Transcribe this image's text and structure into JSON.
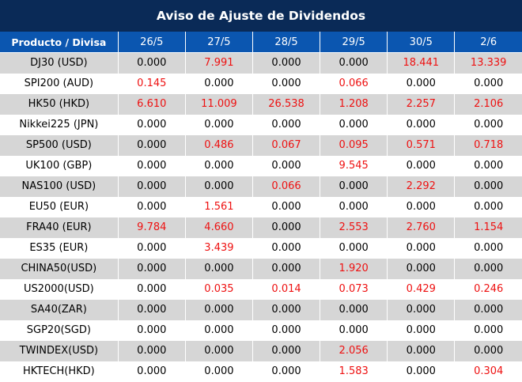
{
  "title": "Aviso de Ajuste de Dividendos",
  "header": {
    "product": "Producto / Divisa",
    "dates": [
      "26/5",
      "27/5",
      "28/5",
      "29/5",
      "30/5",
      "2/6"
    ]
  },
  "rows": [
    {
      "product": "DJ30 (USD)",
      "values": [
        "0.000",
        "7.991",
        "0.000",
        "0.000",
        "18.441",
        "13.339"
      ]
    },
    {
      "product": "SPI200 (AUD)",
      "values": [
        "0.145",
        "0.000",
        "0.000",
        "0.066",
        "0.000",
        "0.000"
      ]
    },
    {
      "product": "HK50 (HKD)",
      "values": [
        "6.610",
        "11.009",
        "26.538",
        "1.208",
        "2.257",
        "2.106"
      ]
    },
    {
      "product": "Nikkei225 (JPN)",
      "values": [
        "0.000",
        "0.000",
        "0.000",
        "0.000",
        "0.000",
        "0.000"
      ]
    },
    {
      "product": "SP500 (USD)",
      "values": [
        "0.000",
        "0.486",
        "0.067",
        "0.095",
        "0.571",
        "0.718"
      ]
    },
    {
      "product": "UK100 (GBP)",
      "values": [
        "0.000",
        "0.000",
        "0.000",
        "9.545",
        "0.000",
        "0.000"
      ]
    },
    {
      "product": "NAS100 (USD)",
      "values": [
        "0.000",
        "0.000",
        "0.066",
        "0.000",
        "2.292",
        "0.000"
      ]
    },
    {
      "product": "EU50 (EUR)",
      "values": [
        "0.000",
        "1.561",
        "0.000",
        "0.000",
        "0.000",
        "0.000"
      ]
    },
    {
      "product": "FRA40 (EUR)",
      "values": [
        "9.784",
        "4.660",
        "0.000",
        "2.553",
        "2.760",
        "1.154"
      ]
    },
    {
      "product": "ES35 (EUR)",
      "values": [
        "0.000",
        "3.439",
        "0.000",
        "0.000",
        "0.000",
        "0.000"
      ]
    },
    {
      "product": "CHINA50(USD)",
      "values": [
        "0.000",
        "0.000",
        "0.000",
        "1.920",
        "0.000",
        "0.000"
      ]
    },
    {
      "product": "US2000(USD)",
      "values": [
        "0.000",
        "0.035",
        "0.014",
        "0.073",
        "0.429",
        "0.246"
      ]
    },
    {
      "product": "SA40(ZAR)",
      "values": [
        "0.000",
        "0.000",
        "0.000",
        "0.000",
        "0.000",
        "0.000"
      ]
    },
    {
      "product": "SGP20(SGD)",
      "values": [
        "0.000",
        "0.000",
        "0.000",
        "0.000",
        "0.000",
        "0.000"
      ]
    },
    {
      "product": "TWINDEX(USD)",
      "values": [
        "0.000",
        "0.000",
        "0.000",
        "2.056",
        "0.000",
        "0.000"
      ]
    },
    {
      "product": "HKTECH(HKD)",
      "values": [
        "0.000",
        "0.000",
        "0.000",
        "1.583",
        "0.000",
        "0.304"
      ]
    }
  ],
  "colors": {
    "title_bg": "#0a2a57",
    "header_bg": "#0b56b0",
    "row_shade": "#d6d6d6",
    "nonzero_value": "#ee1111"
  }
}
